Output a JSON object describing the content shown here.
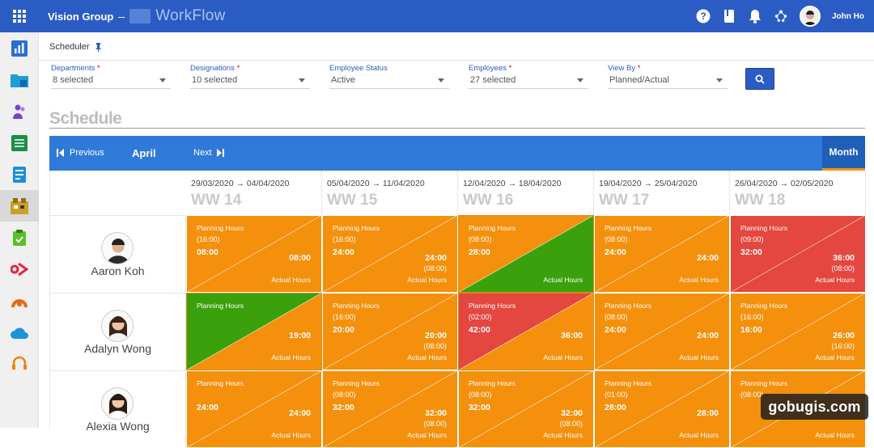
{
  "header": {
    "brand": "Vision Group",
    "separator": "–",
    "app_name": "WorkFlow",
    "user_name": "John Ho"
  },
  "breadcrumb": {
    "label": "Scheduler"
  },
  "filters": [
    {
      "label": "Departments",
      "required": true,
      "value": "8 selected"
    },
    {
      "label": "Designations",
      "required": true,
      "value": "10 selected"
    },
    {
      "label": "Employee Status",
      "required": false,
      "value": "Active"
    },
    {
      "label": "Employees",
      "required": true,
      "value": "27 selected"
    },
    {
      "label": "View By",
      "required": true,
      "value": "Planned/Actual"
    }
  ],
  "schedule": {
    "title": "Schedule",
    "prev_label": "Previous",
    "month": "April",
    "next_label": "Next",
    "view_label": "Month"
  },
  "weeks": [
    {
      "range": "29/03/2020 → 04/04/2020",
      "label": "WW 14"
    },
    {
      "range": "05/04/2020 → 11/04/2020",
      "label": "WW 15"
    },
    {
      "range": "12/04/2020 → 18/04/2020",
      "label": "WW 16"
    },
    {
      "range": "19/04/2020 → 25/04/2020",
      "label": "WW 17"
    },
    {
      "range": "26/04/2020 → 02/05/2020",
      "label": "WW 18"
    }
  ],
  "cell_labels": {
    "planning": "Planning Hours",
    "actual": "Actual Hours"
  },
  "colors": {
    "orange": "#f4900c",
    "green": "#3aa10d",
    "red": "#e4473f",
    "blue": "#2b5cc4"
  },
  "employees": [
    {
      "name": "Aaron Koh",
      "cells": [
        {
          "top": "orange",
          "bottom": "orange",
          "plan_paren": "(16:00)",
          "plan": "08:00",
          "actual": "08:00",
          "actual_paren": ""
        },
        {
          "top": "orange",
          "bottom": "orange",
          "plan_paren": "(16:00)",
          "plan": "24:00",
          "actual": "24:00",
          "actual_paren": "(08:00)"
        },
        {
          "top": "orange",
          "bottom": "green",
          "plan_paren": "(08:00)",
          "plan": "28:00",
          "actual": "",
          "actual_paren": ""
        },
        {
          "top": "orange",
          "bottom": "orange",
          "plan_paren": "(08:00)",
          "plan": "24:00",
          "actual": "24:00",
          "actual_paren": ""
        },
        {
          "top": "red",
          "bottom": "red",
          "plan_paren": "(09:00)",
          "plan": "32:00",
          "actual": "36:00",
          "actual_paren": "(08:00)"
        }
      ]
    },
    {
      "name": "Adalyn Wong",
      "cells": [
        {
          "top": "green",
          "bottom": "orange",
          "plan_paren": "",
          "plan": "",
          "actual": "19:00",
          "actual_paren": ""
        },
        {
          "top": "orange",
          "bottom": "orange",
          "plan_paren": "(16:00)",
          "plan": "20:00",
          "actual": "20:00",
          "actual_paren": "(08:00)"
        },
        {
          "top": "red",
          "bottom": "orange",
          "plan_paren": "(02:00)",
          "plan": "42:00",
          "actual": "36:00",
          "actual_paren": ""
        },
        {
          "top": "orange",
          "bottom": "orange",
          "plan_paren": "(08:00)",
          "plan": "24:00",
          "actual": "24:00",
          "actual_paren": ""
        },
        {
          "top": "orange",
          "bottom": "orange",
          "plan_paren": "(16:00)",
          "plan": "16:00",
          "actual": "26:00",
          "actual_paren": "(16:00)"
        }
      ]
    },
    {
      "name": "Alexia Wong",
      "cells": [
        {
          "top": "orange",
          "bottom": "orange",
          "plan_paren": "",
          "plan": "24:00",
          "actual": "24:00",
          "actual_paren": ""
        },
        {
          "top": "orange",
          "bottom": "orange",
          "plan_paren": "(08:00)",
          "plan": "32:00",
          "actual": "32:00",
          "actual_paren": "(08:00)"
        },
        {
          "top": "orange",
          "bottom": "orange",
          "plan_paren": "(08:00)",
          "plan": "32:00",
          "actual": "32:00",
          "actual_paren": "(08:00)"
        },
        {
          "top": "orange",
          "bottom": "orange",
          "plan_paren": "(01:00)",
          "plan": "28:00",
          "actual": "28:00",
          "actual_paren": ""
        },
        {
          "top": "orange",
          "bottom": "orange",
          "plan_paren": "(08:00)",
          "plan": "",
          "actual": "",
          "actual_paren": ""
        }
      ]
    }
  ],
  "watermark": "gobugis.com"
}
